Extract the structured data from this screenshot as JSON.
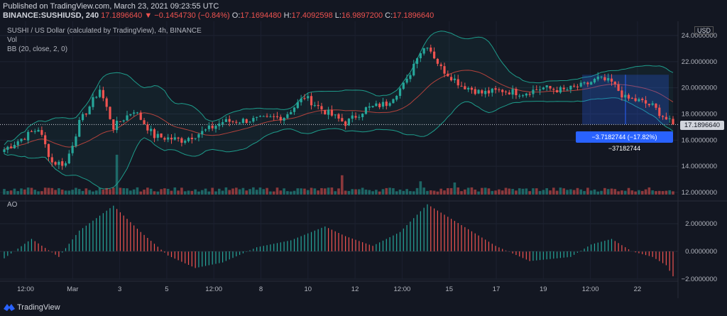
{
  "header": {
    "published": "Published on TradingView.com, March 23, 2021 09:23:55 UTC",
    "symbol": "BINANCE:SUSHIUSD, 240",
    "last": "17.1896640",
    "change": "▼ −0.1454730 (−0.84%)",
    "open_label": "O:",
    "open": "17.1694480",
    "high_label": "H:",
    "high": "17.4092598",
    "low_label": "L:",
    "low": "16.9897200",
    "close_label": "C:",
    "close": "17.1896640"
  },
  "legends": {
    "main": "SUSHI / US Dollar (calculated by TradingView), 4h, BINANCE",
    "vol": "Vol",
    "bb": "BB (20, close, 2, 0)",
    "ao": "AO"
  },
  "price_axis": {
    "unit": "USD",
    "last_price_tag": "17.1896640"
  },
  "measure_label": "−3.7182744 (−17.82%) −37182744",
  "footer": {
    "brand": "TradingView"
  },
  "colors": {
    "up": "#26a69a",
    "down": "#ef5350",
    "bb_band": "#1e9c8b",
    "bb_basis": "#b2423c",
    "measure": "#2962ff"
  },
  "chart_data": [
    {
      "type": "candlestick",
      "title": "SUSHI / US Dollar (calculated by TradingView), 4h, BINANCE",
      "overlay": "BB (20, close, 2, 0)",
      "ylim": [
        12.0,
        24.6
      ],
      "y_ticks": [
        "24.0000000",
        "22.0000000",
        "20.0000000",
        "18.0000000",
        "16.0000000",
        "14.0000000",
        "12.0000000"
      ],
      "x_ticks": [
        "12:00",
        "Mar",
        "3",
        "5",
        "12:00",
        "8",
        "10",
        "12",
        "12:00",
        "15",
        "17",
        "19",
        "12:00",
        "22"
      ],
      "close_anchors": [
        [
          0,
          15.3
        ],
        [
          10,
          16.9
        ],
        [
          14,
          14.3
        ],
        [
          18,
          14.2
        ],
        [
          22,
          17.3
        ],
        [
          28,
          19.9
        ],
        [
          32,
          17.0
        ],
        [
          38,
          18.3
        ],
        [
          44,
          16.3
        ],
        [
          52,
          16.0
        ],
        [
          58,
          16.6
        ],
        [
          64,
          17.4
        ],
        [
          70,
          17.5
        ],
        [
          76,
          17.6
        ],
        [
          82,
          17.8
        ],
        [
          88,
          19.3
        ],
        [
          94,
          18.2
        ],
        [
          100,
          17.3
        ],
        [
          106,
          18.4
        ],
        [
          112,
          18.8
        ],
        [
          118,
          20.5
        ],
        [
          121,
          22.5
        ],
        [
          124,
          23.3
        ],
        [
          128,
          21.5
        ],
        [
          134,
          20.2
        ],
        [
          140,
          19.6
        ],
        [
          146,
          19.8
        ],
        [
          152,
          19.6
        ],
        [
          158,
          20.0
        ],
        [
          164,
          19.8
        ],
        [
          170,
          20.2
        ],
        [
          174,
          20.7
        ],
        [
          178,
          20.4
        ],
        [
          182,
          19.2
        ],
        [
          186,
          19.0
        ],
        [
          190,
          18.6
        ],
        [
          194,
          17.6
        ],
        [
          196,
          17.19
        ]
      ],
      "last_close": 17.18966
    },
    {
      "type": "bar",
      "name": "Vol",
      "spikes": [
        [
          33,
          3.3
        ],
        [
          99,
          1.6
        ],
        [
          122,
          1.1
        ],
        [
          132,
          1.0
        ]
      ]
    },
    {
      "type": "bar",
      "name": "AO",
      "ylim": [
        -2.5,
        3.4
      ],
      "y_ticks": [
        "2.0000000",
        "0.0000000",
        "−2.0000000"
      ],
      "anchors": [
        [
          0,
          -0.5
        ],
        [
          8,
          0.9
        ],
        [
          16,
          -0.4
        ],
        [
          22,
          1.5
        ],
        [
          32,
          3.3
        ],
        [
          40,
          1.4
        ],
        [
          48,
          -0.3
        ],
        [
          56,
          -1.2
        ],
        [
          64,
          -0.8
        ],
        [
          74,
          0.3
        ],
        [
          84,
          0.8
        ],
        [
          94,
          1.8
        ],
        [
          100,
          1.1
        ],
        [
          108,
          0.4
        ],
        [
          116,
          1.4
        ],
        [
          124,
          3.4
        ],
        [
          134,
          1.9
        ],
        [
          144,
          0.4
        ],
        [
          154,
          -0.7
        ],
        [
          166,
          -0.4
        ],
        [
          172,
          0.5
        ],
        [
          178,
          0.9
        ],
        [
          184,
          0.0
        ],
        [
          190,
          -0.4
        ],
        [
          194,
          -1.0
        ],
        [
          196,
          -1.8
        ]
      ]
    }
  ]
}
